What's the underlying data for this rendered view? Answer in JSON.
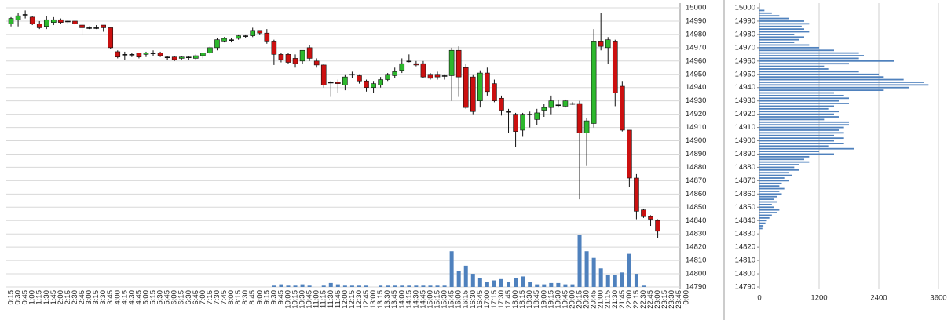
{
  "chart_data": [
    {
      "type": "candlestick",
      "categories": [
        "0:15",
        "0:30",
        "0:45",
        "1:00",
        "1:15",
        "1:30",
        "1:45",
        "2:00",
        "2:15",
        "2:30",
        "2:45",
        "3:00",
        "3:15",
        "3:30",
        "3:45",
        "4:00",
        "4:15",
        "4:30",
        "4:45",
        "5:00",
        "5:15",
        "5:30",
        "5:45",
        "6:00",
        "6:15",
        "6:30",
        "6:45",
        "7:00",
        "7:15",
        "7:30",
        "7:45",
        "8:00",
        "8:15",
        "8:30",
        "8:45",
        "9:00",
        "9:15",
        "9:30",
        "9:45",
        "10:00",
        "10:15",
        "10:30",
        "10:45",
        "11:00",
        "11:15",
        "11:30",
        "11:45",
        "12:00",
        "12:15",
        "12:30",
        "12:45",
        "13:00",
        "13:15",
        "13:30",
        "13:45",
        "14:00",
        "14:15",
        "14:30",
        "14:45",
        "15:00",
        "15:15",
        "15:30",
        "15:45",
        "16:00",
        "16:15",
        "16:30",
        "16:45",
        "17:00",
        "17:15",
        "17:30",
        "17:45",
        "18:00",
        "18:15",
        "18:30",
        "18:45",
        "19:00",
        "19:15",
        "19:30",
        "19:45",
        "20:00",
        "20:15",
        "20:30",
        "20:45",
        "21:00",
        "21:15",
        "21:30",
        "21:45",
        "22:00",
        "22:15",
        "22:30",
        "22:45",
        "23:00",
        "23:15",
        "23:30",
        "23:45",
        "0:00"
      ],
      "open": [
        14988,
        14991,
        14995,
        14993,
        14988,
        14986,
        14989,
        14991,
        14990,
        14990,
        14987,
        14985,
        14985,
        14987,
        14985,
        14967,
        14965,
        14965,
        14966,
        14965,
        14966,
        14966,
        14963,
        14963,
        14962,
        14963,
        14962,
        14964,
        14966,
        14970,
        14975,
        14976,
        14977,
        14979,
        14979,
        14983,
        14981,
        14975,
        14965,
        14965,
        14962,
        14960,
        14970,
        14960,
        14957,
        14944,
        14944,
        14942,
        14950,
        14949,
        14945,
        14940,
        14942,
        14946,
        14949,
        14953,
        14960,
        14958,
        14958,
        14950,
        14950,
        14949,
        14949,
        14968,
        14955,
        14948,
        14930,
        14951,
        14943,
        14932,
        14922,
        14920,
        14908,
        14920,
        14916,
        14923,
        14925,
        14927,
        14926,
        14928,
        14928,
        14906,
        14913,
        14975,
        14970,
        14975,
        14941,
        14908,
        14872,
        14848,
        14843,
        14840,
        null,
        null,
        null,
        null
      ],
      "high": [
        14993,
        14996,
        14998,
        14994,
        14990,
        14994,
        14993,
        14992,
        14991,
        14991,
        14988,
        14986,
        14987,
        14987,
        14985,
        14968,
        14967,
        14966,
        14966,
        14967,
        14968,
        14967,
        14964,
        14964,
        14964,
        14964,
        14965,
        14966,
        14971,
        14977,
        14978,
        14977,
        14980,
        14980,
        14985,
        14983,
        14984,
        14976,
        14966,
        14966,
        14965,
        14968,
        14972,
        14962,
        14958,
        14945,
        14946,
        14950,
        14952,
        14950,
        14946,
        14945,
        14948,
        14951,
        14955,
        14962,
        14965,
        14960,
        14960,
        14951,
        14952,
        14950,
        14970,
        14971,
        14958,
        14950,
        14953,
        14955,
        14946,
        14934,
        14924,
        14921,
        14921,
        14922,
        14924,
        14928,
        14934,
        14931,
        14931,
        14929,
        14930,
        14917,
        14984,
        14996,
        14978,
        14976,
        14945,
        14908,
        14875,
        14849,
        14844,
        14841,
        null,
        null,
        null,
        null
      ],
      "low": [
        14986,
        14986,
        14992,
        14987,
        14984,
        14984,
        14987,
        14988,
        14988,
        14987,
        14980,
        14984,
        14984,
        14982,
        14969,
        14962,
        14961,
        14963,
        14962,
        14963,
        14964,
        14963,
        14961,
        14960,
        14961,
        14961,
        14961,
        14962,
        14965,
        14968,
        14974,
        14974,
        14976,
        14977,
        14978,
        14980,
        14973,
        14957,
        14959,
        14958,
        14955,
        14958,
        14960,
        14955,
        14940,
        14933,
        14936,
        14938,
        14947,
        14943,
        14937,
        14936,
        14940,
        14945,
        14947,
        14951,
        14959,
        14956,
        14947,
        14946,
        14946,
        14946,
        14930,
        14933,
        14924,
        14920,
        14925,
        14934,
        14929,
        14919,
        14906,
        14895,
        14903,
        14910,
        14912,
        14918,
        14920,
        14925,
        14925,
        14927,
        14856,
        14881,
        14910,
        14968,
        14958,
        14926,
        14907,
        14865,
        14841,
        14842,
        14836,
        14827,
        null,
        null,
        null,
        null
      ],
      "close": [
        14992,
        14994,
        14995,
        14988,
        14985,
        14991,
        14991,
        14989,
        14990,
        14988,
        14985,
        14985,
        14985,
        14985,
        14970,
        14963,
        14965,
        14965,
        14963,
        14966,
        14966,
        14964,
        14963,
        14961,
        14963,
        14963,
        14964,
        14966,
        14970,
        14976,
        14977,
        14976,
        14979,
        14979,
        14983,
        14981,
        14975,
        14965,
        14961,
        14959,
        14958,
        14968,
        14962,
        14957,
        14942,
        14944,
        14943,
        14948,
        14950,
        14945,
        14940,
        14943,
        14946,
        14950,
        14952,
        14958,
        14960,
        14957,
        14948,
        14947,
        14948,
        14949,
        14968,
        14948,
        14925,
        14922,
        14951,
        14937,
        14930,
        14923,
        14922,
        14907,
        14920,
        14920,
        14921,
        14925,
        14930,
        14927,
        14930,
        14928,
        14906,
        14915,
        14975,
        14971,
        14976,
        14936,
        14908,
        14872,
        14847,
        14843,
        14841,
        14832,
        null,
        null,
        null,
        null
      ],
      "volume": [
        null,
        null,
        null,
        null,
        null,
        null,
        null,
        null,
        null,
        null,
        null,
        null,
        null,
        null,
        null,
        null,
        null,
        null,
        null,
        null,
        null,
        null,
        null,
        null,
        null,
        null,
        null,
        null,
        null,
        null,
        null,
        null,
        null,
        null,
        null,
        null,
        null,
        1,
        2,
        1,
        1,
        2,
        1,
        null,
        1,
        3,
        2,
        1,
        1,
        1,
        1,
        null,
        1,
        1,
        1,
        1,
        1,
        1,
        1,
        1,
        1,
        1,
        27,
        12,
        16,
        10,
        7,
        4,
        5,
        6,
        4,
        7,
        8,
        4,
        2,
        2,
        3,
        3,
        2,
        2,
        39,
        27,
        22,
        14,
        9,
        9,
        11,
        25,
        10,
        1,
        null,
        null,
        null,
        null,
        null,
        null
      ],
      "up_color": "#2db82d",
      "down_color": "#cc1010",
      "volume_color": "#4f81bd",
      "ylim": [
        14790,
        15000
      ],
      "yticks": [
        14790,
        14800,
        14810,
        14820,
        14830,
        14840,
        14850,
        14860,
        14870,
        14880,
        14890,
        14900,
        14910,
        14920,
        14930,
        14940,
        14950,
        14960,
        14970,
        14980,
        14990,
        15000
      ],
      "grid": true
    },
    {
      "type": "barh",
      "levels": [
        14998,
        14996,
        14994,
        14992,
        14990,
        14988,
        14986,
        14984,
        14982,
        14980,
        14978,
        14976,
        14974,
        14972,
        14970,
        14968,
        14966,
        14964,
        14962,
        14960,
        14958,
        14956,
        14954,
        14952,
        14950,
        14948,
        14946,
        14944,
        14942,
        14940,
        14938,
        14936,
        14934,
        14932,
        14930,
        14928,
        14926,
        14924,
        14922,
        14920,
        14918,
        14916,
        14914,
        14912,
        14910,
        14908,
        14906,
        14904,
        14902,
        14900,
        14898,
        14896,
        14894,
        14892,
        14890,
        14888,
        14886,
        14884,
        14882,
        14880,
        14878,
        14876,
        14874,
        14872,
        14870,
        14868,
        14866,
        14864,
        14862,
        14860,
        14858,
        14856,
        14854,
        14852,
        14850,
        14848,
        14846,
        14844,
        14842,
        14840,
        14838,
        14836,
        14834
      ],
      "values": [
        100,
        250,
        400,
        600,
        900,
        1000,
        850,
        900,
        1000,
        700,
        900,
        800,
        700,
        1000,
        1200,
        1500,
        2000,
        2100,
        2000,
        2700,
        1800,
        1300,
        1400,
        2000,
        2400,
        2500,
        2900,
        3300,
        3400,
        3000,
        2500,
        1500,
        1700,
        1800,
        1600,
        1800,
        1500,
        1400,
        1600,
        1500,
        1600,
        1300,
        1800,
        1800,
        1700,
        1600,
        1700,
        1500,
        1700,
        1500,
        1700,
        1400,
        1900,
        1200,
        1500,
        1000,
        900,
        1000,
        800,
        700,
        800,
        600,
        650,
        500,
        600,
        450,
        400,
        500,
        400,
        450,
        350,
        300,
        350,
        250,
        300,
        400,
        350,
        250,
        200,
        150,
        120,
        80,
        60
      ],
      "color": "#4f81bd",
      "xlim": [
        0,
        3600
      ],
      "xticks": [
        0,
        1200,
        2400,
        3600
      ],
      "ylim": [
        14790,
        15000
      ],
      "yticks": [
        14790,
        14800,
        14810,
        14820,
        14830,
        14840,
        14850,
        14860,
        14870,
        14880,
        14890,
        14900,
        14910,
        14920,
        14930,
        14940,
        14950,
        14960,
        14970,
        14980,
        14990,
        15000
      ],
      "grid": true
    }
  ]
}
